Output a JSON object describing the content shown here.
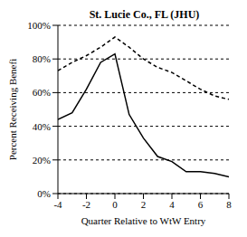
{
  "chart_data": {
    "type": "line",
    "title": "St. Lucie Co., FL (JHU)",
    "x_label": "Quarter Relative to WtW Entry",
    "y_label": "Percent Receiving Benefi",
    "x": [
      -4,
      -3,
      -2,
      -1,
      0,
      1,
      2,
      3,
      4,
      5,
      6,
      7,
      8
    ],
    "series": [
      {
        "color": "#000000",
        "line_style": "dashed",
        "values": [
          73,
          78,
          82,
          87,
          93,
          87,
          80,
          75,
          72,
          67,
          62,
          58,
          56
        ]
      },
      {
        "color": "#000000",
        "line_style": "solid",
        "values": [
          44,
          48,
          62,
          78,
          83,
          47,
          33,
          22,
          19,
          13,
          13,
          12,
          10
        ]
      }
    ],
    "xlim": [
      -4,
      8
    ],
    "xticks": [
      -4,
      -2,
      0,
      2,
      4,
      6,
      8
    ],
    "ylim": [
      0,
      100
    ],
    "yticks": [
      {
        "value": 0,
        "label": "0%"
      },
      {
        "value": 20,
        "label": "20%"
      },
      {
        "value": 40,
        "label": "40%"
      },
      {
        "value": 60,
        "label": "60%"
      },
      {
        "value": 80,
        "label": "80%"
      },
      {
        "value": 100,
        "label": "100%"
      }
    ],
    "grid": true
  }
}
